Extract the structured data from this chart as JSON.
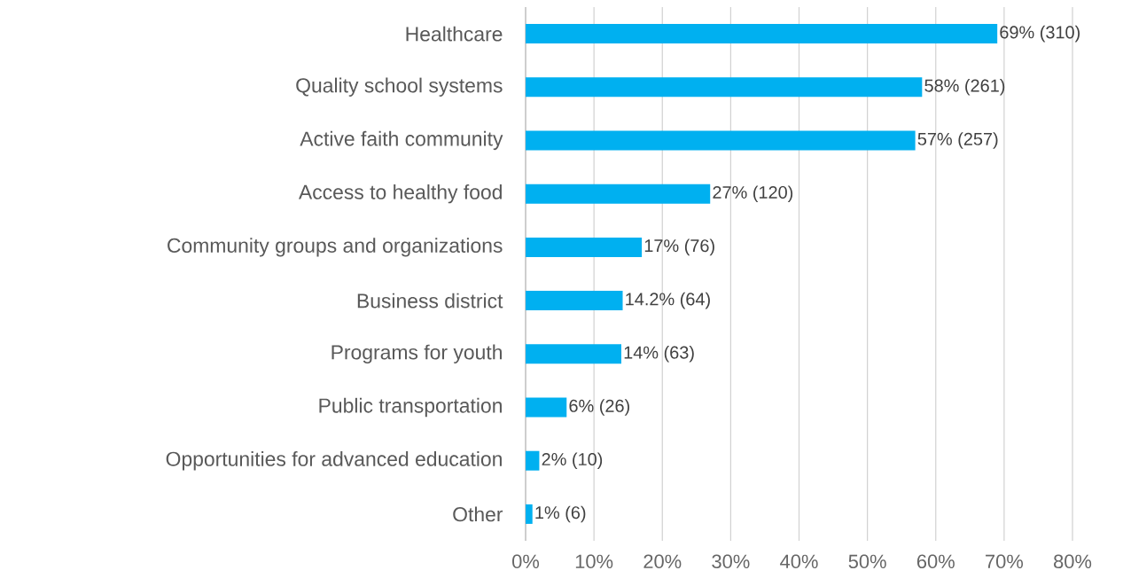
{
  "chart_data": {
    "type": "bar",
    "orientation": "horizontal",
    "categories": [
      "Healthcare",
      "Quality school systems",
      "Active faith community",
      "Access to healthy food",
      "Community groups and organizations",
      "Business district",
      "Programs for youth",
      "Public transportation",
      "Opportunities for advanced education",
      "Other"
    ],
    "values": [
      69,
      58,
      57,
      27,
      17,
      14.2,
      14,
      6,
      2,
      1
    ],
    "value_labels": [
      "69%  (310)",
      "58% (261)",
      "57% (257)",
      "27%  (120)",
      "17%  (76)",
      "14.2%  (64)",
      "14%  (63)",
      "6% (26)",
      "2%  (10)",
      "1%  (6)"
    ],
    "color": "#00b0f0",
    "xlim": [
      0,
      80
    ],
    "xticks": [
      {
        "value": 0,
        "label": "0%"
      },
      {
        "value": 10,
        "label": "10%"
      },
      {
        "value": 20,
        "label": "20%"
      },
      {
        "value": 30,
        "label": "30%"
      },
      {
        "value": 40,
        "label": "40%"
      },
      {
        "value": 50,
        "label": "50%"
      },
      {
        "value": 60,
        "label": "60%"
      },
      {
        "value": 70,
        "label": "70%"
      },
      {
        "value": 80,
        "label": "80%"
      }
    ],
    "grid": "x"
  }
}
